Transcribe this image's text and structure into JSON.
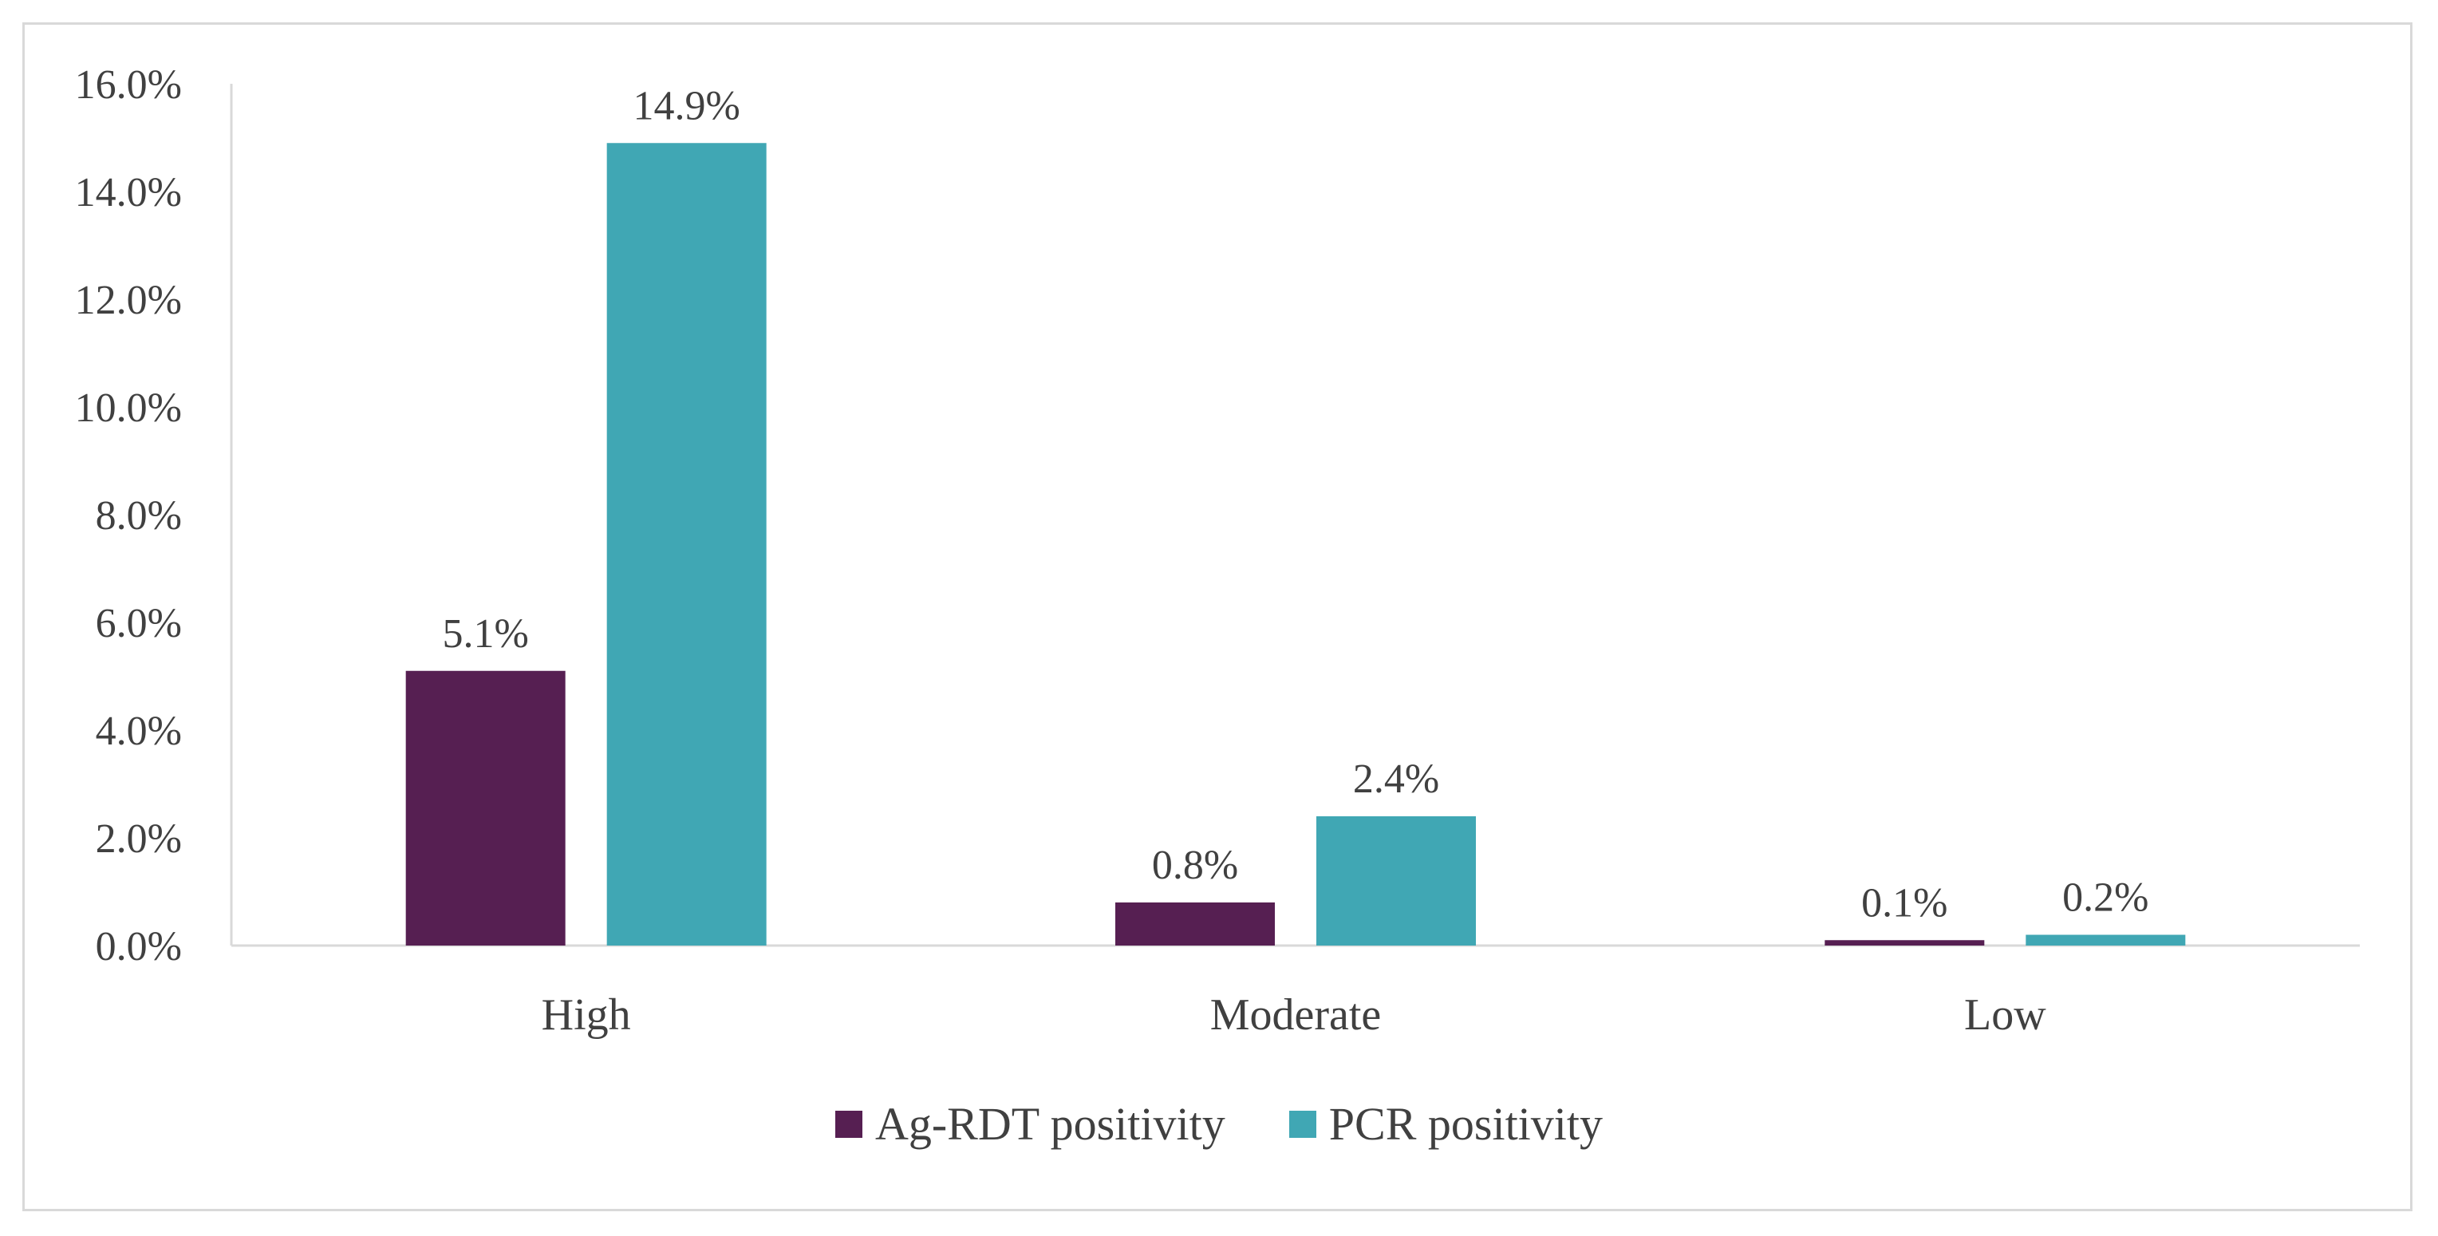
{
  "chart_data": {
    "type": "bar",
    "title": "",
    "xlabel": "",
    "ylabel": "",
    "categories": [
      "High",
      "Moderate",
      "Low"
    ],
    "series": [
      {
        "name": "Ag-RDT positivity",
        "color": "#561f52",
        "values": [
          5.1,
          0.8,
          0.1
        ],
        "labels": [
          "5.1%",
          "0.8%",
          "0.1%"
        ]
      },
      {
        "name": "PCR positivity",
        "color": "#40a7b4",
        "values": [
          14.9,
          2.4,
          0.2
        ],
        "labels": [
          "14.9%",
          "2.4%",
          "0.2%"
        ]
      }
    ],
    "ylim": [
      0,
      16
    ],
    "yticks": [
      0,
      2,
      4,
      6,
      8,
      10,
      12,
      14,
      16
    ],
    "ytick_labels": [
      "0.0%",
      "2.0%",
      "4.0%",
      "6.0%",
      "8.0%",
      "10.0%",
      "12.0%",
      "14.0%",
      "16.0%"
    ],
    "grid": false,
    "legend_position": "bottom"
  }
}
